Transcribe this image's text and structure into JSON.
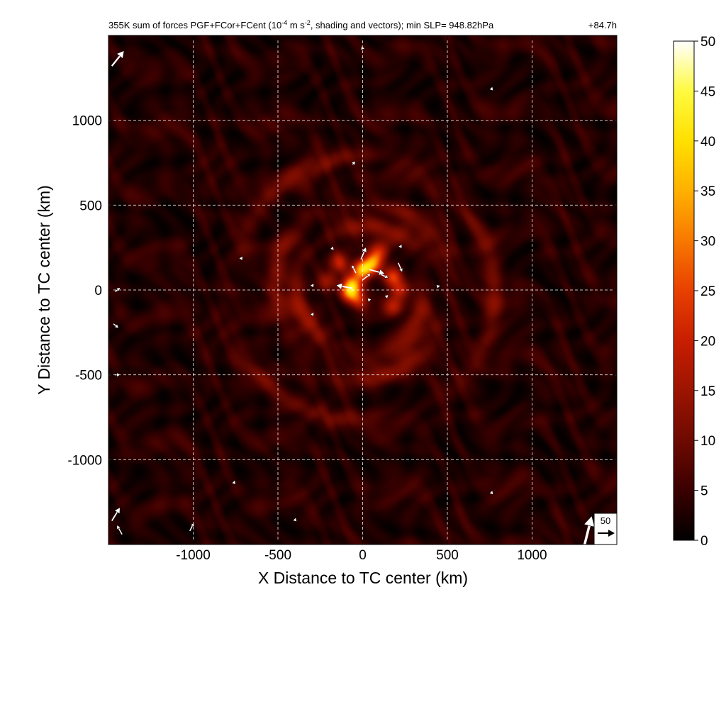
{
  "chart_data": {
    "type": "heatmap",
    "title": "355K sum of forces PGF+FCor+FCent (10",
    "title_sup1": "-4",
    "title_mid": " m s",
    "title_sup2": "-2",
    "title_end": ", shading and vectors); min SLP= 948.82hPa",
    "time_label": "+84.7h",
    "xlabel": "X Distance to TC center (km)",
    "ylabel": "Y Distance to TC center (km)",
    "xlim": [
      -1500,
      1500
    ],
    "ylim": [
      -1500,
      1500
    ],
    "xticks": [
      -1000,
      -500,
      0,
      500,
      1000
    ],
    "yticks": [
      -1000,
      -500,
      0,
      500,
      1000
    ],
    "grid": true,
    "colorbar": {
      "range": [
        0,
        50
      ],
      "ticks": [
        0,
        5,
        10,
        15,
        20,
        25,
        30,
        35,
        40,
        45,
        50
      ],
      "colormap": [
        "#000000",
        "#3a0000",
        "#6e0a00",
        "#9c1400",
        "#c81e00",
        "#e84000",
        "#f87800",
        "#ffb000",
        "#ffe000",
        "#fffa40",
        "#ffffff"
      ]
    },
    "reference_vector": {
      "value": "50"
    },
    "field": {
      "background": 4,
      "rings": [
        {
          "r": 380,
          "value": 10
        },
        {
          "r": 520,
          "value": 8
        },
        {
          "r": 780,
          "value": 7
        }
      ],
      "hotspots": [
        {
          "x": 0,
          "y": 120,
          "value": 35
        },
        {
          "x": -60,
          "y": 30,
          "value": 28
        },
        {
          "x": 60,
          "y": 160,
          "value": 26
        },
        {
          "x": -80,
          "y": -20,
          "value": 22
        },
        {
          "x": 180,
          "y": 80,
          "value": 20
        },
        {
          "x": -140,
          "y": 160,
          "value": 16
        },
        {
          "x": 220,
          "y": 0,
          "value": 15
        },
        {
          "x": -20,
          "y": -60,
          "value": 14
        },
        {
          "x": 100,
          "y": 220,
          "value": 14
        },
        {
          "x": -200,
          "y": 60,
          "value": 12
        },
        {
          "x": 180,
          "y": -100,
          "value": 12
        }
      ]
    },
    "vectors": [
      {
        "x": -10,
        "y": 180,
        "u": 10,
        "v": 24
      },
      {
        "x": 40,
        "y": 120,
        "u": 30,
        "v": -8
      },
      {
        "x": -60,
        "y": 10,
        "u": -32,
        "v": 6
      },
      {
        "x": 210,
        "y": 160,
        "u": 8,
        "v": -18
      },
      {
        "x": 0,
        "y": 60,
        "u": 16,
        "v": 12
      },
      {
        "x": -40,
        "y": 100,
        "u": -8,
        "v": 16
      },
      {
        "x": 110,
        "y": 90,
        "u": 14,
        "v": -6
      },
      {
        "x": -1480,
        "y": 1320,
        "u": 24,
        "v": 30
      },
      {
        "x": -1480,
        "y": -1360,
        "u": 16,
        "v": 26
      },
      {
        "x": -1420,
        "y": -1440,
        "u": -10,
        "v": 18
      },
      {
        "x": -1020,
        "y": -1420,
        "u": 8,
        "v": 16
      },
      {
        "x": 1310,
        "y": -1500,
        "u": 14,
        "v": 56
      },
      {
        "x": -1460,
        "y": -10,
        "u": 10,
        "v": 8
      },
      {
        "x": -1470,
        "y": -200,
        "u": 10,
        "v": -8
      },
      {
        "x": -1460,
        "y": -500,
        "u": 10,
        "v": 0
      },
      {
        "x": 220,
        "y": 250,
        "u": 4,
        "v": 6
      },
      {
        "x": -180,
        "y": 240,
        "u": 2,
        "v": 6
      },
      {
        "x": -60,
        "y": 740,
        "u": 6,
        "v": 6
      },
      {
        "x": 0,
        "y": 1420,
        "u": -2,
        "v": 6
      },
      {
        "x": 760,
        "y": 1180,
        "u": 2,
        "v": 6
      },
      {
        "x": 440,
        "y": 20,
        "u": 6,
        "v": 2
      },
      {
        "x": -720,
        "y": 180,
        "u": 4,
        "v": 6
      },
      {
        "x": -760,
        "y": -1140,
        "u": 2,
        "v": 6
      },
      {
        "x": -400,
        "y": -1360,
        "u": 2,
        "v": 6
      },
      {
        "x": 760,
        "y": -1200,
        "u": 2,
        "v": 6
      },
      {
        "x": -300,
        "y": 20,
        "u": 4,
        "v": 6
      },
      {
        "x": 140,
        "y": -40,
        "u": 4,
        "v": 4
      },
      {
        "x": 40,
        "y": -60,
        "u": -4,
        "v": 4
      },
      {
        "x": -300,
        "y": -150,
        "u": 4,
        "v": 6
      }
    ]
  }
}
